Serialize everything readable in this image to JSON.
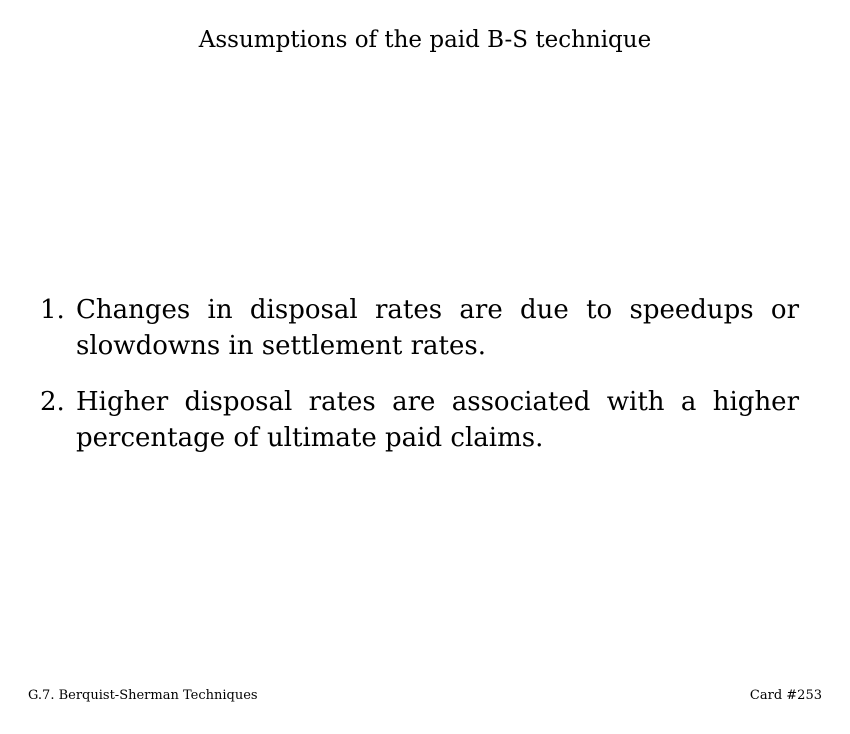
{
  "title": "Assumptions of the paid B-S technique",
  "assumptions": [
    {
      "number": "1.",
      "text": "Changes in disposal rates are due to speedups or slowdowns in settlement rates."
    },
    {
      "number": "2.",
      "text": "Higher disposal rates are associated with a higher percentage of ultimate paid claims."
    }
  ],
  "footer": {
    "section": "G.7. Berquist-Sherman Techniques",
    "card": "Card #253"
  }
}
